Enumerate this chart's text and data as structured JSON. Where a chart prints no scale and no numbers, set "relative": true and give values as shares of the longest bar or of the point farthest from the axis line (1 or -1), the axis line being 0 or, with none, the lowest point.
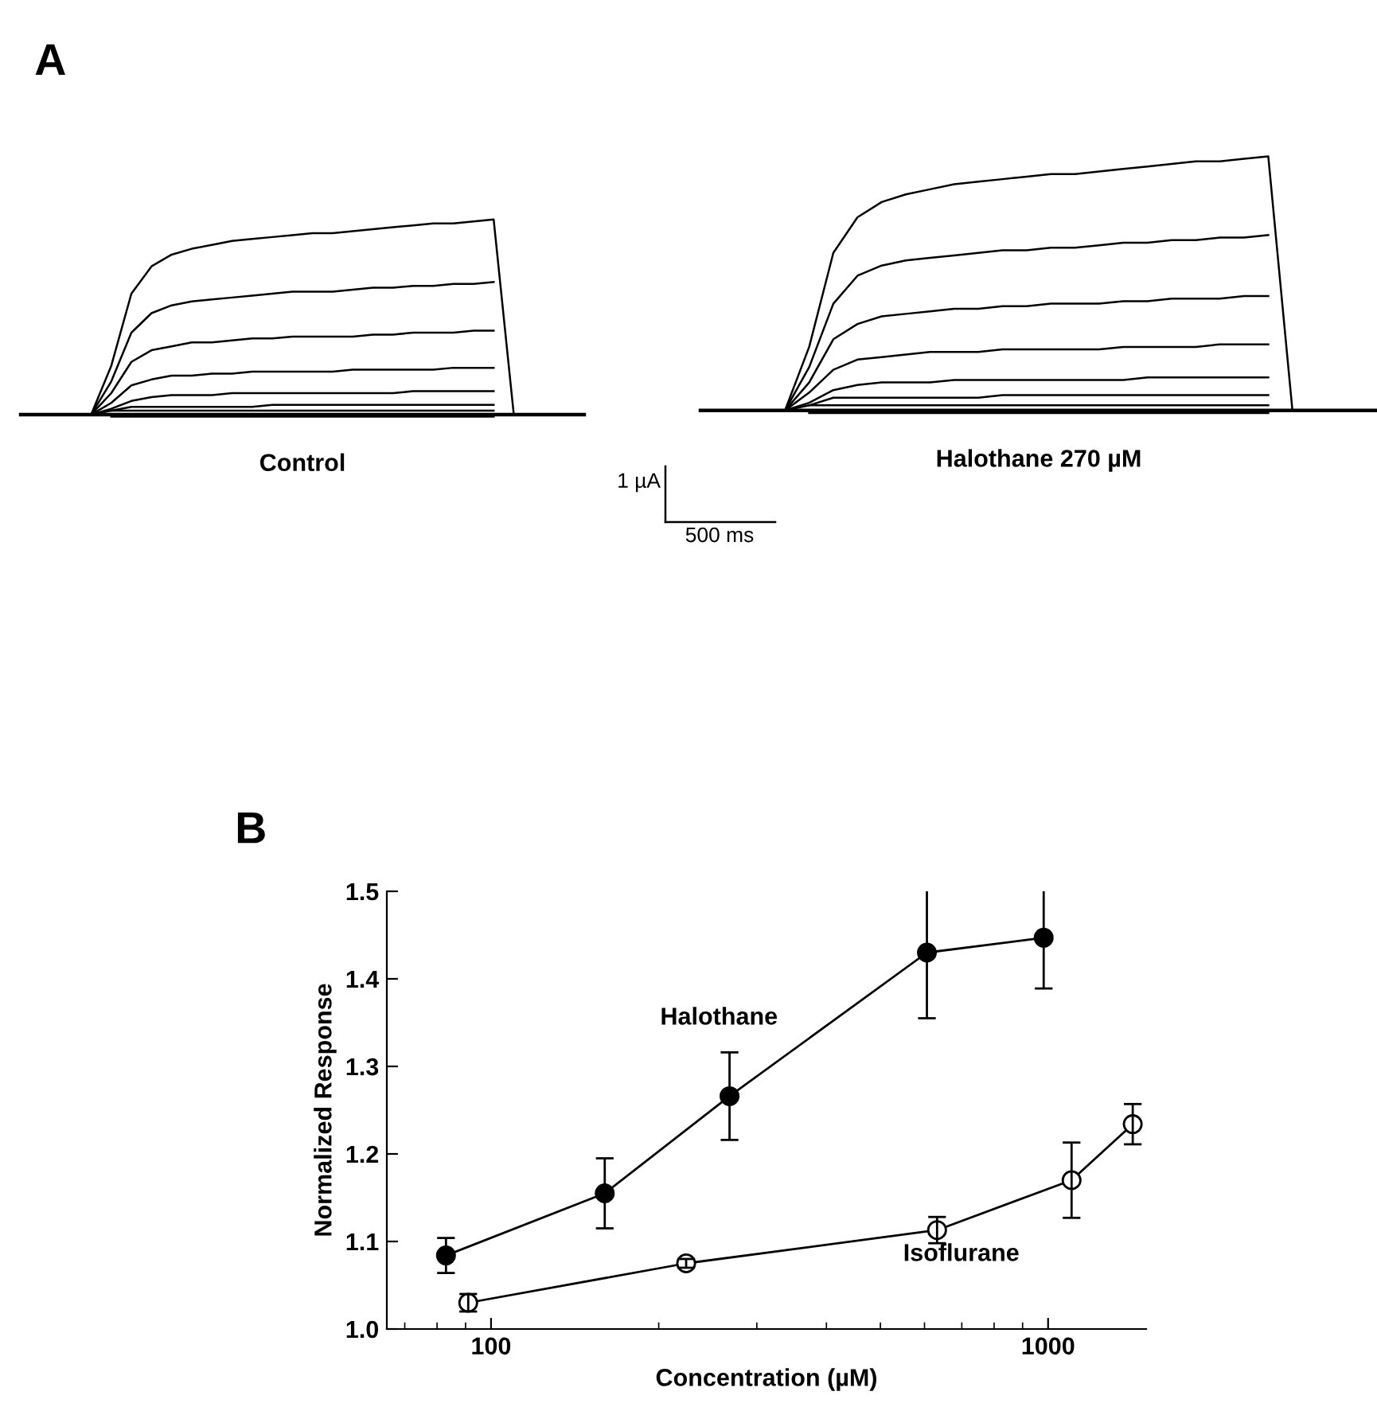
{
  "chart_data": [
    {
      "type": "line",
      "title": "A",
      "xlabel": "Control",
      "relative": true,
      "annotations": [
        "1 µA",
        "500 ms"
      ],
      "categories": [
        null,
        null,
        null,
        null,
        null,
        null,
        null,
        null,
        null,
        null,
        null,
        null,
        null,
        null,
        null,
        null,
        null,
        null,
        null,
        null,
        null,
        null,
        null,
        null,
        null,
        null,
        null,
        null
      ],
      "series": [
        {
          "color": "#000000",
          "values": [
            0,
            0,
            0,
            0,
            0.25,
            0.62,
            0.76,
            0.82,
            0.85,
            0.87,
            0.89,
            0.9,
            0.91,
            0.92,
            0.93,
            0.93,
            0.94,
            0.95,
            0.96,
            0.97,
            0.98,
            0.98,
            0.99,
            1.0,
            0,
            0,
            0,
            0
          ]
        },
        {
          "color": "#000000",
          "values": [
            null,
            null,
            null,
            0,
            0.17,
            0.42,
            0.52,
            0.56,
            0.58,
            0.59,
            0.6,
            0.61,
            0.62,
            0.63,
            0.63,
            0.63,
            0.64,
            0.65,
            0.65,
            0.66,
            0.66,
            0.67,
            0.67,
            0.68,
            null,
            null,
            null,
            null
          ]
        },
        {
          "color": "#000000",
          "values": [
            null,
            null,
            null,
            0,
            0.11,
            0.27,
            0.33,
            0.35,
            0.37,
            0.37,
            0.38,
            0.39,
            0.39,
            0.4,
            0.4,
            0.4,
            0.4,
            0.41,
            0.41,
            0.42,
            0.42,
            0.42,
            0.43,
            0.43,
            null,
            null,
            null,
            null
          ]
        },
        {
          "color": "#000000",
          "values": [
            null,
            null,
            null,
            0,
            0.06,
            0.15,
            0.18,
            0.2,
            0.2,
            0.21,
            0.21,
            0.22,
            0.22,
            0.22,
            0.22,
            0.22,
            0.23,
            0.23,
            0.23,
            0.23,
            0.23,
            0.24,
            0.24,
            0.24,
            null,
            null,
            null,
            null
          ]
        },
        {
          "color": "#000000",
          "values": [
            null,
            null,
            null,
            0,
            0.03,
            0.07,
            0.09,
            0.1,
            0.1,
            0.1,
            0.11,
            0.11,
            0.11,
            0.11,
            0.11,
            0.11,
            0.11,
            0.11,
            0.11,
            0.12,
            0.12,
            0.12,
            0.12,
            0.12,
            null,
            null,
            null,
            null
          ]
        },
        {
          "color": "#000000",
          "values": [
            null,
            null,
            null,
            0,
            0.02,
            0.04,
            0.04,
            0.04,
            0.04,
            0.04,
            0.04,
            0.04,
            0.05,
            0.05,
            0.05,
            0.05,
            0.05,
            0.05,
            0.05,
            0.05,
            0.05,
            0.05,
            0.05,
            0.05,
            null,
            null,
            null,
            null
          ]
        },
        {
          "color": "#000000",
          "values": [
            null,
            null,
            null,
            null,
            0.02,
            0.02,
            0.02,
            0.02,
            0.02,
            0.02,
            0.02,
            0.02,
            0.02,
            0.02,
            0.02,
            0.02,
            0.02,
            0.02,
            0.02,
            0.02,
            0.02,
            0.02,
            0.02,
            0.02,
            null,
            null,
            null,
            null
          ]
        },
        {
          "color": "#000000",
          "values": [
            null,
            null,
            null,
            null,
            -0.01,
            -0.01,
            -0.01,
            -0.01,
            -0.01,
            -0.01,
            -0.01,
            -0.01,
            -0.01,
            -0.01,
            -0.01,
            -0.01,
            -0.01,
            -0.01,
            -0.01,
            -0.01,
            -0.01,
            -0.01,
            -0.01,
            -0.01,
            null,
            null,
            null,
            null
          ]
        }
      ]
    },
    {
      "type": "line",
      "xlabel": "Halothane 270 µM",
      "relative": true,
      "categories": [
        null,
        null,
        null,
        null,
        null,
        null,
        null,
        null,
        null,
        null,
        null,
        null,
        null,
        null,
        null,
        null,
        null,
        null,
        null,
        null,
        null,
        null,
        null,
        null,
        null,
        null,
        null,
        null
      ],
      "series": [
        {
          "color": "#000000",
          "values": [
            0,
            0,
            0,
            0,
            0.25,
            0.62,
            0.76,
            0.82,
            0.85,
            0.87,
            0.89,
            0.9,
            0.91,
            0.92,
            0.93,
            0.93,
            0.94,
            0.95,
            0.96,
            0.97,
            0.98,
            0.98,
            0.99,
            1.0,
            0,
            0,
            0,
            0
          ]
        },
        {
          "color": "#000000",
          "values": [
            null,
            null,
            null,
            0,
            0.17,
            0.42,
            0.53,
            0.57,
            0.59,
            0.6,
            0.61,
            0.62,
            0.63,
            0.63,
            0.64,
            0.64,
            0.65,
            0.66,
            0.66,
            0.67,
            0.67,
            0.68,
            0.68,
            0.69,
            null,
            null,
            null,
            null
          ]
        },
        {
          "color": "#000000",
          "values": [
            null,
            null,
            null,
            0,
            0.11,
            0.28,
            0.34,
            0.37,
            0.38,
            0.39,
            0.4,
            0.4,
            0.41,
            0.41,
            0.42,
            0.42,
            0.42,
            0.43,
            0.43,
            0.44,
            0.44,
            0.44,
            0.45,
            0.45,
            null,
            null,
            null,
            null
          ]
        },
        {
          "color": "#000000",
          "values": [
            null,
            null,
            null,
            0,
            0.07,
            0.16,
            0.2,
            0.21,
            0.22,
            0.23,
            0.23,
            0.23,
            0.24,
            0.24,
            0.24,
            0.24,
            0.24,
            0.25,
            0.25,
            0.25,
            0.25,
            0.26,
            0.26,
            0.26,
            null,
            null,
            null,
            null
          ]
        },
        {
          "color": "#000000",
          "values": [
            null,
            null,
            null,
            0,
            0.03,
            0.08,
            0.1,
            0.11,
            0.11,
            0.11,
            0.12,
            0.12,
            0.12,
            0.12,
            0.12,
            0.12,
            0.12,
            0.12,
            0.13,
            0.13,
            0.13,
            0.13,
            0.13,
            0.13,
            null,
            null,
            null,
            null
          ]
        },
        {
          "color": "#000000",
          "values": [
            null,
            null,
            null,
            0,
            0.02,
            0.05,
            0.05,
            0.05,
            0.05,
            0.05,
            0.05,
            0.05,
            0.06,
            0.06,
            0.06,
            0.06,
            0.06,
            0.06,
            0.06,
            0.06,
            0.06,
            0.06,
            0.06,
            0.06,
            null,
            null,
            null,
            null
          ]
        },
        {
          "color": "#000000",
          "values": [
            null,
            null,
            null,
            null,
            0.02,
            0.02,
            0.02,
            0.02,
            0.02,
            0.02,
            0.02,
            0.02,
            0.02,
            0.02,
            0.02,
            0.02,
            0.02,
            0.02,
            0.02,
            0.02,
            0.02,
            0.02,
            0.02,
            0.02,
            null,
            null,
            null,
            null
          ]
        },
        {
          "color": "#000000",
          "values": [
            null,
            null,
            null,
            null,
            -0.01,
            -0.01,
            -0.01,
            -0.01,
            -0.01,
            -0.01,
            -0.01,
            -0.01,
            -0.01,
            -0.01,
            -0.01,
            -0.01,
            -0.01,
            -0.01,
            -0.01,
            -0.01,
            -0.01,
            -0.01,
            -0.01,
            -0.01,
            null,
            null,
            null,
            null
          ]
        }
      ]
    },
    {
      "type": "line",
      "title": "B",
      "xlabel": "Concentration (µM)",
      "ylabel": "Normalized Response",
      "log": "x",
      "marker": "circle",
      "xlim": [
        65,
        1500
      ],
      "xticks": [
        100,
        1000
      ],
      "ylim": [
        1.0,
        1.5
      ],
      "yticks": [
        {
          "value": 1.0,
          "label": "1.0"
        },
        {
          "value": 1.1,
          "label": "1.1"
        },
        {
          "value": 1.2,
          "label": "1.2"
        },
        {
          "value": 1.3,
          "label": "1.3"
        },
        {
          "value": 1.4,
          "label": "1.4"
        },
        {
          "value": 1.5,
          "label": "1.5"
        }
      ],
      "series": [
        {
          "name": "Halothane",
          "color": "#000000",
          "x": [
            83,
            160,
            268,
            606,
            982
          ],
          "values": [
            1.084,
            1.155,
            1.266,
            1.43,
            1.447
          ],
          "errors": [
            0.02,
            0.04,
            0.05,
            0.075,
            0.058
          ]
        },
        {
          "name": "Isoflurane",
          "color": "#000000",
          "x": [
            91,
            224,
            632,
            1102,
            1419
          ],
          "values": [
            1.03,
            1.075,
            1.113,
            1.17,
            1.234
          ],
          "errors": [
            0.01,
            0.005,
            0.015,
            0.043,
            0.023
          ]
        }
      ]
    }
  ]
}
